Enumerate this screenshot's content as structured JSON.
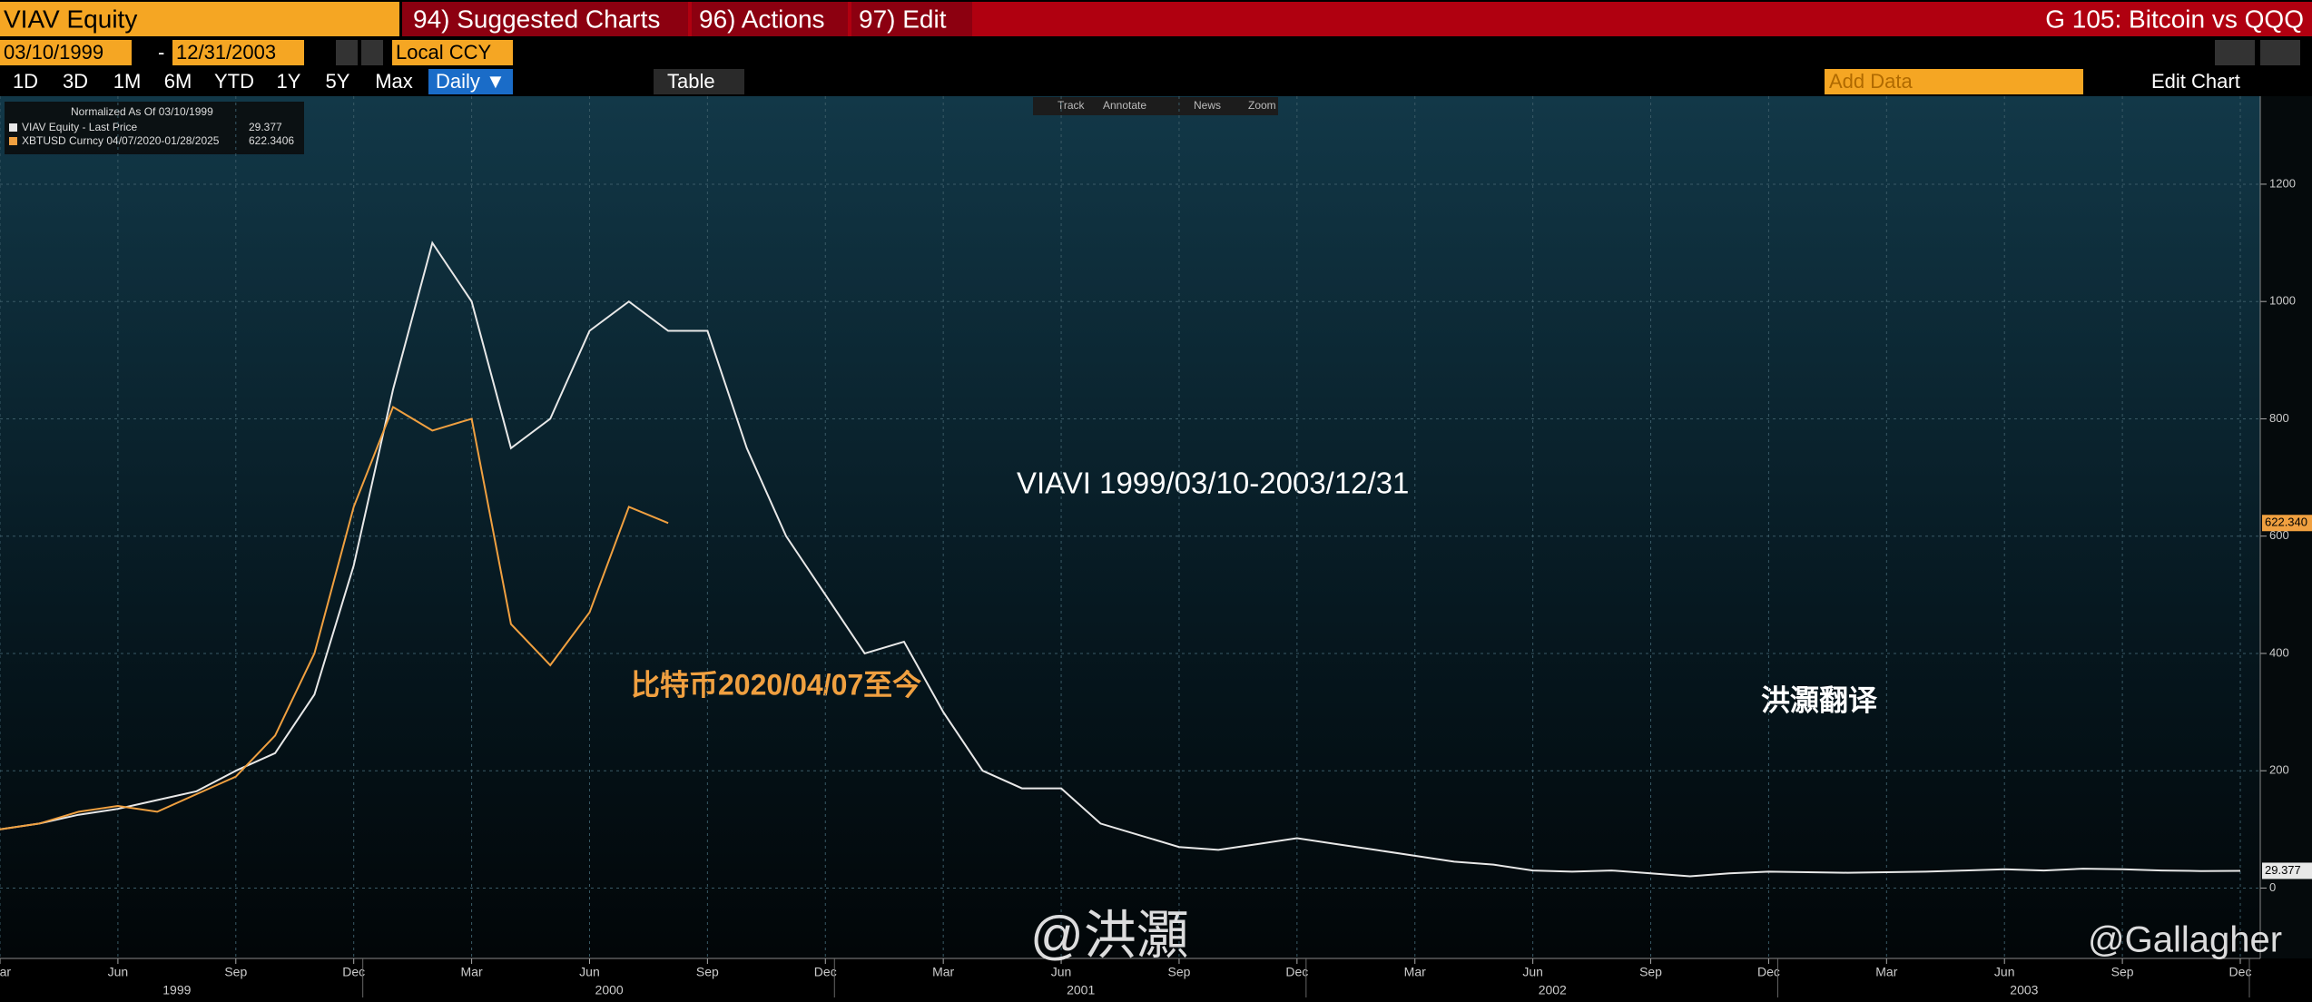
{
  "toolbar": {
    "ticker": "VIAV Equity",
    "menus": [
      "94) Suggested Charts",
      "96) Actions",
      "97) Edit"
    ],
    "title": "G 105: Bitcoin vs QQQ",
    "start": "03/10/1999",
    "dash": "-",
    "end": "12/31/2003",
    "currency": "Local CCY",
    "ranges": [
      "1D",
      "3D",
      "1M",
      "6M",
      "YTD",
      "1Y",
      "5Y",
      "Max"
    ],
    "frequency": "Daily ▼",
    "table": "Table",
    "add_data": "Add Data",
    "edit_chart": "Edit Chart",
    "tools": [
      "Track",
      "Annotate",
      "News",
      "Zoom"
    ]
  },
  "chart_data": {
    "type": "line",
    "legend_title": "Normalized As Of 03/10/1999",
    "annotations": [
      "VIAVI 1999/03/10-2003/12/31",
      "比特币2020/04/07至今",
      "洪灝翻译"
    ],
    "watermarks": [
      "@洪灝",
      "@Gallagher"
    ],
    "x": [
      "1999-03",
      "1999-04",
      "1999-05",
      "1999-06",
      "1999-07",
      "1999-08",
      "1999-09",
      "1999-10",
      "1999-11",
      "1999-12",
      "2000-01",
      "2000-02",
      "2000-03",
      "2000-04",
      "2000-05",
      "2000-06",
      "2000-07",
      "2000-08",
      "2000-09",
      "2000-10",
      "2000-11",
      "2000-12",
      "2001-01",
      "2001-02",
      "2001-03",
      "2001-04",
      "2001-05",
      "2001-06",
      "2001-07",
      "2001-08",
      "2001-09",
      "2001-10",
      "2001-11",
      "2001-12",
      "2002-01",
      "2002-02",
      "2002-03",
      "2002-04",
      "2002-05",
      "2002-06",
      "2002-07",
      "2002-08",
      "2002-09",
      "2002-10",
      "2002-11",
      "2002-12",
      "2003-01",
      "2003-02",
      "2003-03",
      "2003-04",
      "2003-05",
      "2003-06",
      "2003-07",
      "2003-08",
      "2003-09",
      "2003-10",
      "2003-11",
      "2003-12"
    ],
    "series": [
      {
        "name": "VIAV Equity - Last Price",
        "color": "#e8e8e8",
        "tag_label": "29.377",
        "values": [
          100,
          110,
          125,
          135,
          150,
          165,
          200,
          230,
          330,
          550,
          850,
          1100,
          1000,
          750,
          800,
          950,
          1000,
          950,
          950,
          750,
          600,
          500,
          400,
          420,
          300,
          200,
          170,
          170,
          110,
          90,
          70,
          65,
          75,
          85,
          75,
          65,
          55,
          45,
          40,
          30,
          28,
          30,
          25,
          20,
          25,
          28,
          27,
          26,
          27,
          28,
          30,
          32,
          30,
          33,
          32,
          30,
          29,
          29.377
        ]
      },
      {
        "name": "XBTUSD Curncy 04/07/2020-01/28/2025",
        "color": "#f0a040",
        "tag_label": "622.340",
        "values": [
          100,
          110,
          130,
          140,
          130,
          160,
          190,
          260,
          400,
          650,
          820,
          780,
          800,
          450,
          380,
          470,
          650,
          622.3406,
          null,
          null,
          null,
          null,
          null,
          null,
          null,
          null,
          null,
          null,
          null,
          null,
          null,
          null,
          null,
          null,
          null,
          null,
          null,
          null,
          null,
          null,
          null,
          null,
          null,
          null,
          null,
          null,
          null,
          null,
          null,
          null,
          null,
          null,
          null,
          null,
          null,
          null,
          null,
          null
        ]
      }
    ],
    "ylim": [
      -120,
      1350
    ],
    "yticks": [
      0,
      200,
      400,
      600,
      800,
      1000,
      1200
    ],
    "grid": true,
    "xticks": [
      {
        "value": "1999-03",
        "label": "Mar"
      },
      {
        "value": "1999-06",
        "label": "Jun"
      },
      {
        "value": "1999-09",
        "label": "Sep"
      },
      {
        "value": "1999-12",
        "label": "Dec"
      },
      {
        "value": "2000-03",
        "label": "Mar"
      },
      {
        "value": "2000-06",
        "label": "Jun"
      },
      {
        "value": "2000-09",
        "label": "Sep"
      },
      {
        "value": "2000-12",
        "label": "Dec"
      },
      {
        "value": "2001-03",
        "label": "Mar"
      },
      {
        "value": "2001-06",
        "label": "Jun"
      },
      {
        "value": "2001-09",
        "label": "Sep"
      },
      {
        "value": "2001-12",
        "label": "Dec"
      },
      {
        "value": "2002-03",
        "label": "Mar"
      },
      {
        "value": "2002-06",
        "label": "Jun"
      },
      {
        "value": "2002-09",
        "label": "Sep"
      },
      {
        "value": "2002-12",
        "label": "Dec"
      },
      {
        "value": "2003-03",
        "label": "Mar"
      },
      {
        "value": "2003-06",
        "label": "Jun"
      },
      {
        "value": "2003-09",
        "label": "Sep"
      },
      {
        "value": "2003-12",
        "label": "Dec"
      }
    ],
    "years": [
      "1999",
      "2000",
      "2001",
      "2002",
      "2003"
    ]
  }
}
